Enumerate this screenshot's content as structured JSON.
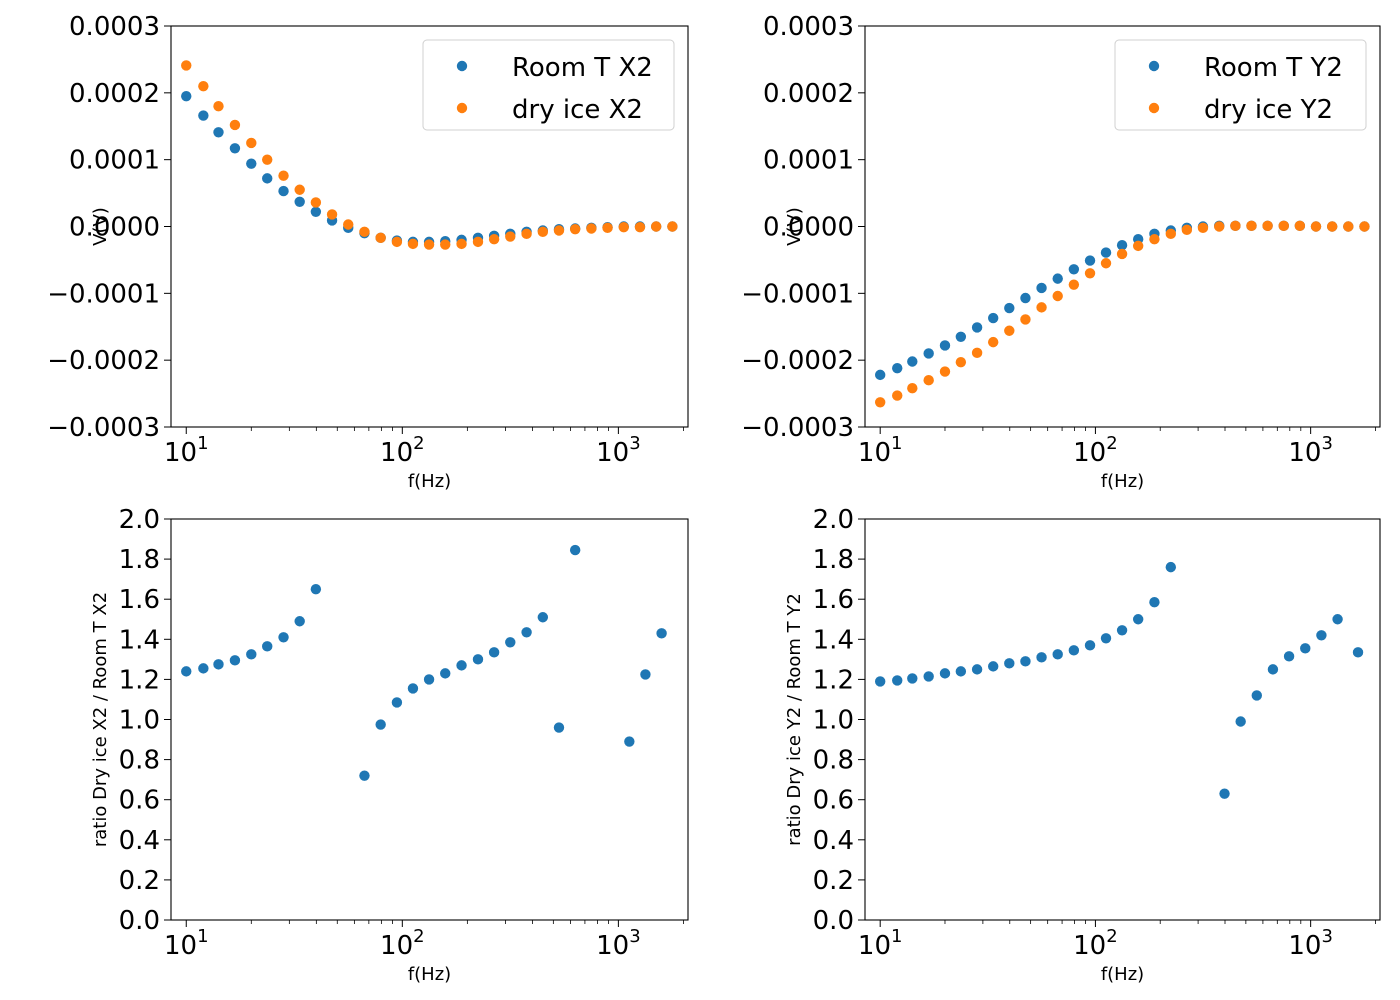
{
  "chart_data": [
    {
      "type": "scatter",
      "xscale": "log",
      "xlabel": "f(Hz)",
      "ylabel": "V(V)",
      "ylim": [
        -0.0003,
        0.0003
      ],
      "xlim": [
        8.5,
        2100
      ],
      "yticks": [
        "0.0003",
        "0.0002",
        "0.0001",
        "0.0000",
        "−0.0001",
        "−0.0002",
        "−0.0003"
      ],
      "ytick_values": [
        0.0003,
        0.0002,
        0.0001,
        0.0,
        -0.0001,
        -0.0002,
        -0.0003
      ],
      "xticks": [
        {
          "base": "10",
          "exp": "1",
          "value": 10
        },
        {
          "base": "10",
          "exp": "2",
          "value": 100
        },
        {
          "base": "10",
          "exp": "3",
          "value": 1000
        }
      ],
      "legend_position": "upper right",
      "x": [
        10,
        12,
        14.1,
        16.8,
        20,
        23.7,
        28.2,
        33.5,
        39.8,
        47.3,
        56.2,
        66.8,
        79.4,
        94.4,
        112,
        133,
        158,
        188,
        224,
        266,
        316,
        376,
        447,
        531,
        631,
        750,
        891,
        1059,
        1259,
        1496,
        1778
      ],
      "series": [
        {
          "name": "Room T X2",
          "color": "#1f77b4",
          "values": [
            0.000195,
            0.000166,
            0.000141,
            0.000117,
            9.4e-05,
            7.2e-05,
            5.3e-05,
            3.7e-05,
            2.2e-05,
            9e-06,
            -2e-06,
            -1e-05,
            -1.7e-05,
            -2.1e-05,
            -2.3e-05,
            -2.3e-05,
            -2.2e-05,
            -2e-05,
            -1.7e-05,
            -1.4e-05,
            -1.1e-05,
            -8e-06,
            -6e-06,
            -4e-06,
            -3e-06,
            -2e-06,
            -1e-06,
            0.0,
            0.0,
            0.0,
            0.0
          ]
        },
        {
          "name": "dry ice X2",
          "color": "#ff7f0e",
          "values": [
            0.000241,
            0.00021,
            0.00018,
            0.000152,
            0.000125,
            0.0001,
            7.6e-05,
            5.5e-05,
            3.6e-05,
            1.8e-05,
            3e-06,
            -8e-06,
            -1.7e-05,
            -2.3e-05,
            -2.6e-05,
            -2.7e-05,
            -2.7e-05,
            -2.6e-05,
            -2.3e-05,
            -1.9e-05,
            -1.5e-05,
            -1.1e-05,
            -8e-06,
            -6e-06,
            -4e-06,
            -3e-06,
            -2e-06,
            -1e-06,
            -1e-06,
            0.0,
            0.0
          ]
        }
      ]
    },
    {
      "type": "scatter",
      "xscale": "log",
      "xlabel": "f(Hz)",
      "ylabel": "V(V)",
      "ylim": [
        -0.0003,
        0.0003
      ],
      "xlim": [
        8.5,
        2100
      ],
      "yticks": [
        "0.0003",
        "0.0002",
        "0.0001",
        "0.0000",
        "−0.0001",
        "−0.0002",
        "−0.0003"
      ],
      "ytick_values": [
        0.0003,
        0.0002,
        0.0001,
        0.0,
        -0.0001,
        -0.0002,
        -0.0003
      ],
      "xticks": [
        {
          "base": "10",
          "exp": "1",
          "value": 10
        },
        {
          "base": "10",
          "exp": "2",
          "value": 100
        },
        {
          "base": "10",
          "exp": "3",
          "value": 1000
        }
      ],
      "legend_position": "upper right",
      "x": [
        10,
        12,
        14.1,
        16.8,
        20,
        23.7,
        28.2,
        33.5,
        39.8,
        47.3,
        56.2,
        66.8,
        79.4,
        94.4,
        112,
        133,
        158,
        188,
        224,
        266,
        316,
        376,
        447,
        531,
        631,
        750,
        891,
        1059,
        1259,
        1496,
        1778
      ],
      "series": [
        {
          "name": "Room T Y2",
          "color": "#1f77b4",
          "values": [
            -0.000222,
            -0.000212,
            -0.000202,
            -0.00019,
            -0.000178,
            -0.000165,
            -0.000151,
            -0.000137,
            -0.000122,
            -0.000107,
            -9.2e-05,
            -7.8e-05,
            -6.4e-05,
            -5.1e-05,
            -3.9e-05,
            -2.8e-05,
            -1.9e-05,
            -1.1e-05,
            -6e-06,
            -2e-06,
            0.0,
            1e-06,
            1e-06,
            1e-06,
            1e-06,
            1e-06,
            1e-06,
            0.0,
            0.0,
            0.0,
            0.0
          ]
        },
        {
          "name": "dry ice Y2",
          "color": "#ff7f0e",
          "values": [
            -0.000263,
            -0.000253,
            -0.000242,
            -0.00023,
            -0.000217,
            -0.000203,
            -0.000189,
            -0.000173,
            -0.000156,
            -0.000139,
            -0.000121,
            -0.000104,
            -8.7e-05,
            -7e-05,
            -5.5e-05,
            -4.1e-05,
            -2.9e-05,
            -1.9e-05,
            -1.1e-05,
            -5e-06,
            -2e-06,
            0.0,
            1e-06,
            1e-06,
            1e-06,
            1e-06,
            1e-06,
            0.0,
            0.0,
            0.0,
            0.0
          ]
        }
      ]
    },
    {
      "type": "scatter",
      "xscale": "log",
      "xlabel": "f(Hz)",
      "ylabel": "ratio Dry ice X2 / Room T X2",
      "ylim": [
        0,
        2
      ],
      "xlim": [
        8.5,
        2100
      ],
      "yticks": [
        "2.0",
        "1.8",
        "1.6",
        "1.4",
        "1.2",
        "1.0",
        "0.8",
        "0.6",
        "0.4",
        "0.2",
        "0.0"
      ],
      "ytick_values": [
        2.0,
        1.8,
        1.6,
        1.4,
        1.2,
        1.0,
        0.8,
        0.6,
        0.4,
        0.2,
        0.0
      ],
      "xticks": [
        {
          "base": "10",
          "exp": "1",
          "value": 10
        },
        {
          "base": "10",
          "exp": "2",
          "value": 100
        },
        {
          "base": "10",
          "exp": "3",
          "value": 1000
        }
      ],
      "x": [
        10,
        12,
        14.1,
        16.8,
        20,
        23.7,
        28.2,
        33.5,
        39.8,
        66.8,
        79.4,
        94.4,
        112,
        133,
        158,
        188,
        224,
        266,
        316,
        376,
        447,
        531,
        631,
        1124,
        1334,
        1585
      ],
      "series": [
        {
          "color": "#1f77b4",
          "values": [
            1.24,
            1.255,
            1.275,
            1.295,
            1.325,
            1.365,
            1.41,
            1.49,
            1.65,
            0.72,
            0.975,
            1.085,
            1.155,
            1.2,
            1.23,
            1.27,
            1.3,
            1.335,
            1.385,
            1.435,
            1.51,
            0.96,
            1.845,
            0.89,
            1.225,
            1.43
          ]
        }
      ]
    },
    {
      "type": "scatter",
      "xscale": "log",
      "xlabel": "f(Hz)",
      "ylabel": "ratio Dry ice Y2 / Room T Y2",
      "ylim": [
        0,
        2
      ],
      "xlim": [
        8.5,
        2100
      ],
      "yticks": [
        "2.0",
        "1.8",
        "1.6",
        "1.4",
        "1.2",
        "1.0",
        "0.8",
        "0.6",
        "0.4",
        "0.2",
        "0.0"
      ],
      "ytick_values": [
        2.0,
        1.8,
        1.6,
        1.4,
        1.2,
        1.0,
        0.8,
        0.6,
        0.4,
        0.2,
        0.0
      ],
      "xticks": [
        {
          "base": "10",
          "exp": "1",
          "value": 10
        },
        {
          "base": "10",
          "exp": "2",
          "value": 100
        },
        {
          "base": "10",
          "exp": "3",
          "value": 1000
        }
      ],
      "x": [
        10,
        12,
        14.1,
        16.8,
        20,
        23.7,
        28.2,
        33.5,
        39.8,
        47.3,
        56.2,
        66.8,
        79.4,
        94.4,
        112,
        133,
        158,
        188,
        224,
        398,
        473,
        562,
        668,
        794,
        944,
        1122,
        1334,
        1660
      ],
      "series": [
        {
          "color": "#1f77b4",
          "values": [
            1.19,
            1.195,
            1.205,
            1.215,
            1.23,
            1.24,
            1.25,
            1.265,
            1.28,
            1.29,
            1.31,
            1.325,
            1.345,
            1.37,
            1.405,
            1.445,
            1.5,
            1.585,
            1.76,
            0.63,
            0.99,
            1.12,
            1.25,
            1.315,
            1.355,
            1.42,
            1.5,
            1.335
          ]
        }
      ]
    }
  ]
}
